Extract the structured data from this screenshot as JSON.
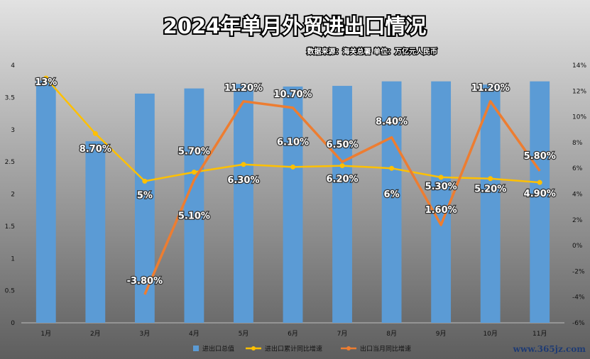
{
  "chart_data": {
    "type": "bar",
    "title": "2024年单月外贸进出口情况",
    "subtitle": "数据来源：海关总署 单位：万亿元人民币",
    "categories": [
      "1月",
      "2月",
      "3月",
      "4月",
      "5月",
      "6月",
      "7月",
      "8月",
      "9月",
      "10月",
      "11月"
    ],
    "series": [
      {
        "name": "进出口总值",
        "type": "bar",
        "axis": "left",
        "color": "#5b9bd5",
        "values": [
          3.76,
          2.82,
          3.56,
          3.64,
          3.71,
          3.67,
          3.68,
          3.75,
          3.75,
          3.7,
          3.75
        ]
      },
      {
        "name": "进出口累计同比增速",
        "type": "line",
        "axis": "right",
        "color": "#ffc000",
        "values": [
          13,
          8.7,
          5,
          5.7,
          6.3,
          6.1,
          6.2,
          6,
          5.3,
          5.2,
          4.9
        ],
        "labels": [
          "13%",
          "8.70%",
          "5%",
          "5.70%",
          "6.30%",
          "6.10%",
          "6.20%",
          "6%",
          "5.30%",
          "5.20%",
          "4.90%"
        ]
      },
      {
        "name": "出口当月同比增速",
        "type": "line",
        "axis": "right",
        "color": "#ed7d31",
        "values": [
          null,
          null,
          -3.8,
          5.1,
          11.2,
          10.7,
          6.5,
          8.4,
          1.6,
          11.2,
          5.8
        ],
        "labels": [
          null,
          null,
          "-3.80%",
          "5.10%",
          "11.20%",
          "10.70%",
          "6.50%",
          "8.40%",
          "1.60%",
          "11.20%",
          "5.80%"
        ]
      }
    ],
    "y_left": {
      "min": 0,
      "max": 4,
      "step": 0.5,
      "ticks": [
        "0",
        "0.5",
        "1",
        "1.5",
        "2",
        "2.5",
        "3",
        "3.5",
        "4"
      ]
    },
    "y_right": {
      "min": -6,
      "max": 14,
      "step": 2,
      "ticks": [
        "-6%",
        "-4%",
        "-2%",
        "0%",
        "2%",
        "4%",
        "6%",
        "8%",
        "10%",
        "12%",
        "14%"
      ]
    },
    "legend_position": "bottom",
    "grid": false
  },
  "watermark": "www.365jz.com"
}
